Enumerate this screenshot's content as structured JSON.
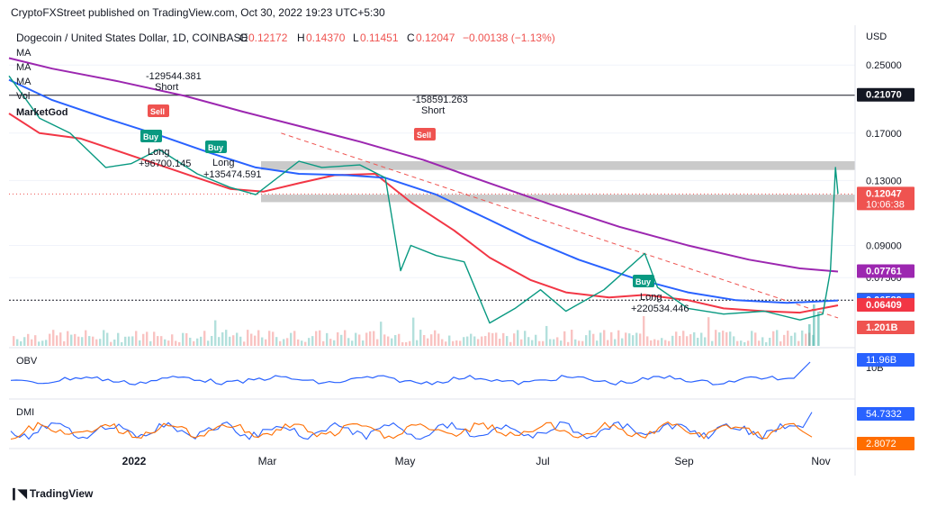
{
  "header": {
    "published_line": "CryptoFXStreet published on TradingView.com, Oct 30, 2022 19:23 UTC+5:30"
  },
  "symbol": {
    "title": "Dogecoin / United States Dollar, 1D, COINBASE",
    "ohlc": [
      {
        "key": "O",
        "value": "0.12172"
      },
      {
        "key": "H",
        "value": "0.14370"
      },
      {
        "key": "L",
        "value": "0.11451"
      },
      {
        "key": "C",
        "value": "0.12047"
      }
    ],
    "change": "−0.00138 (−1.13%)",
    "indicator_labels": [
      "MA",
      "MA",
      "MA",
      "Vol",
      "MarketGod"
    ]
  },
  "price_axis": {
    "currency": "USD",
    "ticks": [
      "0.25000",
      "0.17000",
      "0.13000",
      "0.09000",
      "0.07500"
    ]
  },
  "price_badges": [
    {
      "value": "0.21070",
      "bg": "#131722",
      "fg": "#ffffff"
    },
    {
      "value": "0.12047",
      "sub": "10:06:38",
      "bg": "#ef5350",
      "fg": "#ffffff"
    },
    {
      "value": "0.07761",
      "bg": "#9c27b0",
      "fg": "#ffffff"
    },
    {
      "value": "0.06601",
      "bg": "#131722",
      "fg": "#ffffff"
    },
    {
      "value": "0.06589",
      "bg": "#2962ff",
      "fg": "#ffffff"
    },
    {
      "value": "0.06409",
      "bg": "#f23645",
      "fg": "#ffffff"
    },
    {
      "value": "1.201B",
      "bg": "#ef5350",
      "fg": "#ffffff"
    }
  ],
  "signals": [
    {
      "type": "Short",
      "value": "-129544.381",
      "badge": "Sell"
    },
    {
      "type": "Long",
      "value": "+96700.145",
      "badge": "Buy"
    },
    {
      "type": "Long",
      "value": "+135474.591",
      "badge": "Buy"
    },
    {
      "type": "Short",
      "value": "-158591.263",
      "badge": "Sell"
    },
    {
      "type": "Long",
      "value": "+220534.446",
      "badge": "Buy"
    }
  ],
  "obv": {
    "label": "OBV",
    "badge": "11.96B",
    "tick": "10B",
    "color": "#2962ff"
  },
  "dmi": {
    "label": "DMI",
    "badge_plus": "54.7332",
    "badge_minus": "2.8072",
    "plus_color": "#2962ff",
    "minus_color": "#ff6d00"
  },
  "time_axis": [
    "2022",
    "Mar",
    "May",
    "Jul",
    "Sep",
    "Nov"
  ],
  "footer": {
    "brand": "TradingView"
  },
  "colors": {
    "up": "#26a69a",
    "down": "#ef5350",
    "ma_fast": "#f23645",
    "ma_mid": "#2962ff",
    "ma_slow": "#9c27b0",
    "zone": "#9e9e9e",
    "trend": "#ef5350"
  },
  "chart_data": {
    "type": "line",
    "scale": "log",
    "series": [
      {
        "values": [
          {
            "date": "2021-12-08",
            "price": 0.19
          },
          {
            "date": "2021-12-20",
            "price": 0.17
          },
          {
            "date": "2022-01-05",
            "price": 0.165
          },
          {
            "date": "2022-01-18",
            "price": 0.155
          },
          {
            "date": "2022-02-05",
            "price": 0.142
          },
          {
            "date": "2022-02-20",
            "price": 0.132
          },
          {
            "date": "2022-03-05",
            "price": 0.124
          },
          {
            "date": "2022-03-18",
            "price": 0.122
          },
          {
            "date": "2022-04-01",
            "price": 0.128
          },
          {
            "date": "2022-04-15",
            "price": 0.134
          },
          {
            "date": "2022-05-01",
            "price": 0.135
          },
          {
            "date": "2022-05-15",
            "price": 0.115
          },
          {
            "date": "2022-06-01",
            "price": 0.098
          },
          {
            "date": "2022-06-15",
            "price": 0.084
          },
          {
            "date": "2022-07-01",
            "price": 0.074
          },
          {
            "date": "2022-07-15",
            "price": 0.069
          },
          {
            "date": "2022-08-01",
            "price": 0.067
          },
          {
            "date": "2022-08-15",
            "price": 0.068
          },
          {
            "date": "2022-09-01",
            "price": 0.066
          },
          {
            "date": "2022-09-15",
            "price": 0.063
          },
          {
            "date": "2022-10-01",
            "price": 0.062
          },
          {
            "date": "2022-10-15",
            "price": 0.0615
          },
          {
            "date": "2022-10-30",
            "price": 0.0641
          }
        ]
      },
      {
        "values": [
          {
            "date": "2021-12-08",
            "price": 0.23
          },
          {
            "date": "2021-12-25",
            "price": 0.205
          },
          {
            "date": "2022-01-15",
            "price": 0.185
          },
          {
            "date": "2022-02-05",
            "price": 0.168
          },
          {
            "date": "2022-02-25",
            "price": 0.152
          },
          {
            "date": "2022-03-15",
            "price": 0.14
          },
          {
            "date": "2022-04-01",
            "price": 0.135
          },
          {
            "date": "2022-04-20",
            "price": 0.134
          },
          {
            "date": "2022-05-05",
            "price": 0.132
          },
          {
            "date": "2022-05-25",
            "price": 0.12
          },
          {
            "date": "2022-06-15",
            "price": 0.104
          },
          {
            "date": "2022-07-01",
            "price": 0.093
          },
          {
            "date": "2022-07-20",
            "price": 0.083
          },
          {
            "date": "2022-08-10",
            "price": 0.075
          },
          {
            "date": "2022-09-01",
            "price": 0.069
          },
          {
            "date": "2022-09-20",
            "price": 0.066
          },
          {
            "date": "2022-10-10",
            "price": 0.065
          },
          {
            "date": "2022-10-30",
            "price": 0.06589
          }
        ]
      },
      {
        "values": [
          {
            "date": "2021-12-08",
            "price": 0.26
          },
          {
            "date": "2021-12-25",
            "price": 0.245
          },
          {
            "date": "2022-01-20",
            "price": 0.228
          },
          {
            "date": "2022-02-15",
            "price": 0.21
          },
          {
            "date": "2022-03-10",
            "price": 0.192
          },
          {
            "date": "2022-04-01",
            "price": 0.177
          },
          {
            "date": "2022-04-25",
            "price": 0.162
          },
          {
            "date": "2022-05-20",
            "price": 0.146
          },
          {
            "date": "2022-06-15",
            "price": 0.128
          },
          {
            "date": "2022-07-10",
            "price": 0.113
          },
          {
            "date": "2022-08-05",
            "price": 0.1
          },
          {
            "date": "2022-09-01",
            "price": 0.09
          },
          {
            "date": "2022-09-25",
            "price": 0.083
          },
          {
            "date": "2022-10-15",
            "price": 0.079
          },
          {
            "date": "2022-10-30",
            "price": 0.07761
          }
        ]
      },
      {
        "values": [
          {
            "date": "2021-12-08",
            "price": 0.235
          },
          {
            "date": "2021-12-20",
            "price": 0.185
          },
          {
            "date": "2022-01-01",
            "price": 0.17
          },
          {
            "date": "2022-01-15",
            "price": 0.14
          },
          {
            "date": "2022-01-25",
            "price": 0.143
          },
          {
            "date": "2022-02-05",
            "price": 0.155
          },
          {
            "date": "2022-02-20",
            "price": 0.135
          },
          {
            "date": "2022-03-05",
            "price": 0.125
          },
          {
            "date": "2022-03-15",
            "price": 0.12
          },
          {
            "date": "2022-04-01",
            "price": 0.145
          },
          {
            "date": "2022-04-10",
            "price": 0.14
          },
          {
            "date": "2022-04-25",
            "price": 0.142
          },
          {
            "date": "2022-05-05",
            "price": 0.132
          },
          {
            "date": "2022-05-11",
            "price": 0.078
          },
          {
            "date": "2022-05-15",
            "price": 0.09
          },
          {
            "date": "2022-05-25",
            "price": 0.085
          },
          {
            "date": "2022-06-05",
            "price": 0.082
          },
          {
            "date": "2022-06-15",
            "price": 0.058
          },
          {
            "date": "2022-06-25",
            "price": 0.063
          },
          {
            "date": "2022-07-05",
            "price": 0.07
          },
          {
            "date": "2022-07-15",
            "price": 0.062
          },
          {
            "date": "2022-07-30",
            "price": 0.07
          },
          {
            "date": "2022-08-15",
            "price": 0.086
          },
          {
            "date": "2022-08-20",
            "price": 0.071
          },
          {
            "date": "2022-09-01",
            "price": 0.063
          },
          {
            "date": "2022-09-15",
            "price": 0.061
          },
          {
            "date": "2022-10-01",
            "price": 0.062
          },
          {
            "date": "2022-10-15",
            "price": 0.059
          },
          {
            "date": "2022-10-24",
            "price": 0.061
          },
          {
            "date": "2022-10-27",
            "price": 0.078
          },
          {
            "date": "2022-10-29",
            "price": 0.14
          },
          {
            "date": "2022-10-30",
            "price": 0.12047
          }
        ]
      }
    ],
    "zones": [
      {
        "low": 0.138,
        "high": 0.145
      },
      {
        "low": 0.115,
        "high": 0.12
      }
    ],
    "horizontal_lines": [
      0.2107,
      0.06601
    ],
    "trendline": {
      "from": {
        "date": "2022-03-25",
        "price": 0.17
      },
      "to": {
        "date": "2022-10-30",
        "price": 0.0597
      }
    },
    "x_range": [
      "2021-12-08",
      "2022-11-05"
    ],
    "y_range": [
      0.052,
      0.28
    ]
  }
}
